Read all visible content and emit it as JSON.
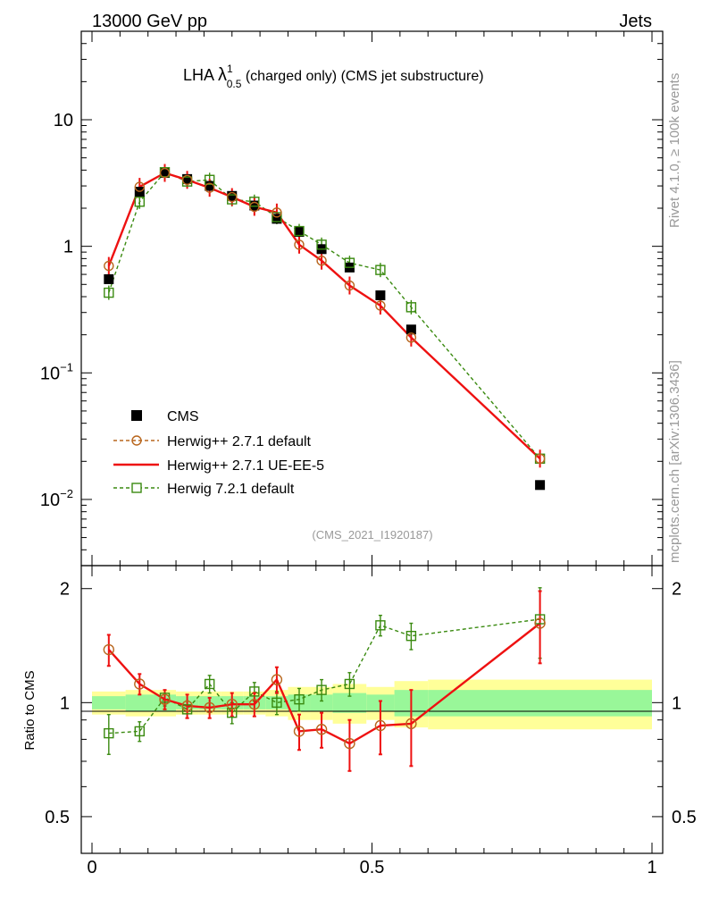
{
  "header": {
    "left": "13000 GeV pp",
    "right": "Jets"
  },
  "title": {
    "prefix": "LHA ",
    "lambda": "λ",
    "sup": "1",
    "sub": "0.5",
    "suffix": " (charged only) (CMS jet substructure)"
  },
  "side_labels": {
    "rivet": "Rivet 4.1.0, ≥ 100k events",
    "mcplots": "mcplots.cern.ch [arXiv:1306.3436]"
  },
  "analysis_tag": "(CMS_2021_I1920187)",
  "legend": {
    "cms": "CMS",
    "hpp_default": "Herwig++ 2.7.1 default",
    "hpp_ueee5": "Herwig++ 2.7.1 UE-EE-5",
    "h7_default": "Herwig 7.2.1 default"
  },
  "ratio_ylabel": "Ratio to CMS",
  "colors": {
    "cms": "#000000",
    "hpp_default": "#b8661d",
    "hpp_ueee5": "#ee1111",
    "h7_default": "#3a8a10",
    "band_inner": "#99f799",
    "band_outer": "#ffff99"
  },
  "chart_data": {
    "type": "scatter",
    "main": {
      "yscale": "log",
      "ylim": [
        0.003,
        50
      ],
      "xlim": [
        0,
        1
      ],
      "yticks": [
        {
          "value": 10,
          "base": "10",
          "exp": ""
        },
        {
          "value": 1,
          "base": "1",
          "exp": ""
        },
        {
          "value": 0.1,
          "base": "10",
          "exp": "−1"
        },
        {
          "value": 0.01,
          "base": "10",
          "exp": "−2"
        }
      ]
    },
    "ratio": {
      "yscale": "log",
      "ylim": [
        0.4,
        2.3
      ],
      "yticks": [
        {
          "value": 2,
          "label": "2"
        },
        {
          "value": 1,
          "label": "1"
        },
        {
          "value": 0.5,
          "label": "0.5"
        }
      ]
    },
    "xticks": [
      {
        "value": 0,
        "label": "0"
      },
      {
        "value": 0.5,
        "label": "0.5"
      },
      {
        "value": 1,
        "label": "1"
      }
    ],
    "cms": {
      "x": [
        0.03,
        0.085,
        0.13,
        0.17,
        0.21,
        0.25,
        0.29,
        0.33,
        0.37,
        0.41,
        0.46,
        0.515,
        0.57,
        0.8
      ],
      "y": [
        0.55,
        2.7,
        3.8,
        3.4,
        3.0,
        2.5,
        2.1,
        1.65,
        1.3,
        0.95,
        0.68,
        0.41,
        0.22,
        0.013
      ],
      "xlo": [
        0.0,
        0.06,
        0.11,
        0.15,
        0.19,
        0.23,
        0.27,
        0.31,
        0.35,
        0.39,
        0.43,
        0.49,
        0.54,
        0.6
      ],
      "xhi": [
        0.06,
        0.11,
        0.15,
        0.19,
        0.23,
        0.27,
        0.31,
        0.35,
        0.39,
        0.43,
        0.49,
        0.54,
        0.6,
        1.0
      ],
      "band_inner": [
        0.04,
        0.05,
        0.05,
        0.04,
        0.04,
        0.04,
        0.04,
        0.04,
        0.05,
        0.05,
        0.06,
        0.05,
        0.08,
        0.08
      ],
      "band_outer": [
        0.07,
        0.08,
        0.08,
        0.07,
        0.07,
        0.07,
        0.07,
        0.08,
        0.1,
        0.1,
        0.12,
        0.1,
        0.14,
        0.15
      ]
    },
    "series": [
      {
        "name": "Herwig++ 2.7.1 default",
        "style": "dashed-circle",
        "x": [
          0.03,
          0.085,
          0.13,
          0.17,
          0.21,
          0.25,
          0.29,
          0.33,
          0.37,
          0.41,
          0.46,
          0.515,
          0.57,
          0.8
        ],
        "y": [
          0.7,
          2.95,
          3.8,
          3.35,
          2.9,
          2.45,
          2.05,
          1.85,
          1.03,
          0.77,
          0.49,
          0.34,
          0.19,
          0.021
        ],
        "ratio": [
          1.38,
          1.12,
          1.02,
          0.98,
          0.97,
          0.99,
          0.99,
          1.15,
          0.84,
          0.85,
          0.78,
          0.87,
          0.88,
          1.62
        ],
        "ratio_err": [
          0.13,
          0.07,
          0.06,
          0.07,
          0.06,
          0.07,
          0.07,
          0.09,
          0.09,
          0.09,
          0.12,
          0.14,
          0.2,
          0.35
        ]
      },
      {
        "name": "Herwig++ 2.7.1 UE-EE-5",
        "style": "solid-circle",
        "x": [
          0.03,
          0.085,
          0.13,
          0.17,
          0.21,
          0.25,
          0.29,
          0.33,
          0.37,
          0.41,
          0.46,
          0.515,
          0.57,
          0.8
        ],
        "y": [
          0.7,
          2.95,
          3.8,
          3.35,
          2.9,
          2.45,
          2.05,
          1.85,
          1.03,
          0.77,
          0.49,
          0.34,
          0.19,
          0.021
        ],
        "ratio": [
          1.38,
          1.12,
          1.02,
          0.98,
          0.97,
          0.99,
          0.99,
          1.15,
          0.84,
          0.85,
          0.78,
          0.87,
          0.88,
          1.62
        ],
        "ratio_err": [
          0.13,
          0.07,
          0.06,
          0.07,
          0.06,
          0.07,
          0.07,
          0.09,
          0.09,
          0.09,
          0.12,
          0.14,
          0.2,
          0.35
        ]
      },
      {
        "name": "Herwig 7.2.1 default",
        "style": "dashed-square",
        "x": [
          0.03,
          0.085,
          0.13,
          0.17,
          0.21,
          0.25,
          0.29,
          0.33,
          0.37,
          0.41,
          0.46,
          0.515,
          0.57,
          0.8
        ],
        "y": [
          0.43,
          2.25,
          3.85,
          3.25,
          3.35,
          2.35,
          2.25,
          1.7,
          1.32,
          1.03,
          0.74,
          0.65,
          0.33,
          0.021
        ],
        "ratio": [
          0.83,
          0.84,
          1.03,
          0.96,
          1.12,
          0.94,
          1.07,
          1.0,
          1.02,
          1.08,
          1.12,
          1.6,
          1.5,
          1.66
        ],
        "ratio_err": [
          0.1,
          0.05,
          0.05,
          0.05,
          0.06,
          0.06,
          0.06,
          0.07,
          0.07,
          0.07,
          0.08,
          0.1,
          0.12,
          0.35
        ]
      }
    ]
  }
}
